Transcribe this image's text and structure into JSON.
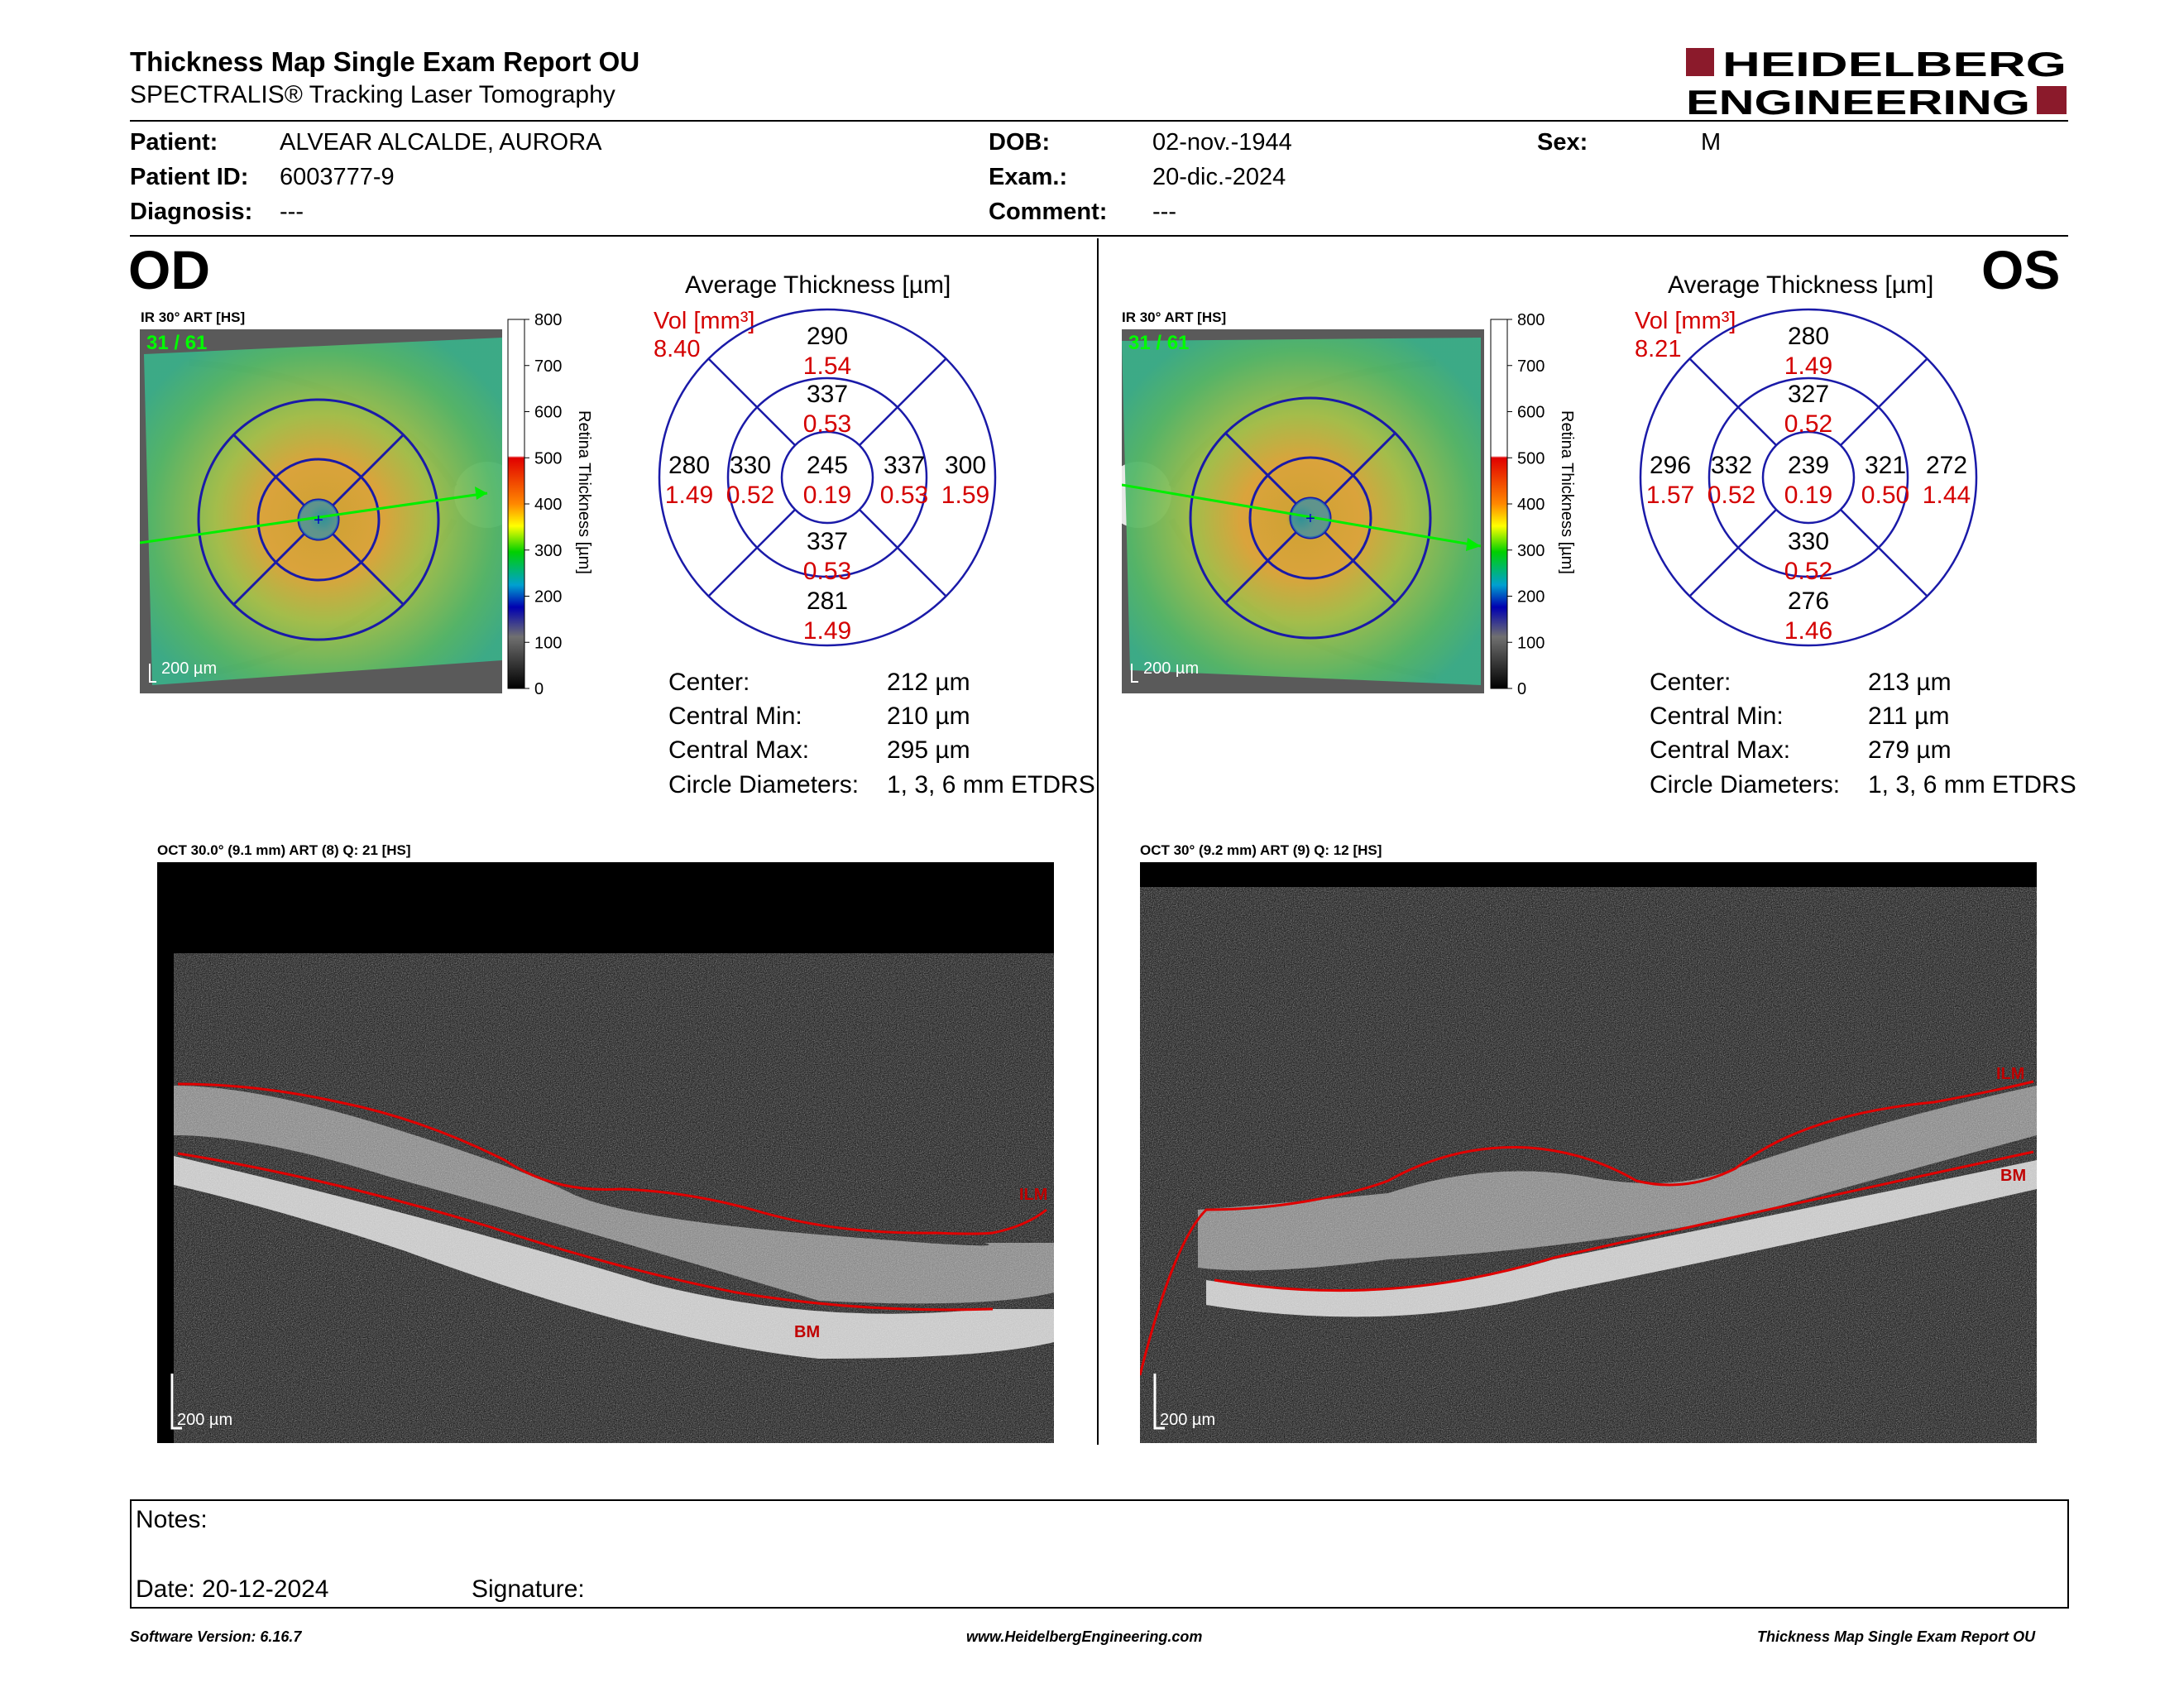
{
  "header": {
    "title": "Thickness Map Single Exam Report OU",
    "subtitle": "SPECTRALIS® Tracking Laser Tomography",
    "logo_line1": "HEIDELBERG",
    "logo_line2": "ENGINEERING"
  },
  "patient": {
    "patient_label": "Patient:",
    "patient_value": "ALVEAR ALCALDE, AURORA",
    "id_label": "Patient ID:",
    "id_value": "6003777-9",
    "diagnosis_label": "Diagnosis:",
    "diagnosis_value": "---",
    "dob_label": "DOB:",
    "dob_value": "02-nov.-1944",
    "exam_label": "Exam.:",
    "exam_value": "20-dic.-2024",
    "comment_label": "Comment:",
    "comment_value": "---",
    "sex_label": "Sex:",
    "sex_value": "M"
  },
  "colorbar": {
    "ticks": [
      "800",
      "700",
      "600",
      "500",
      "400",
      "300",
      "200",
      "100",
      "0"
    ],
    "label": "Retina Thickness [µm]"
  },
  "od": {
    "eye": "OD",
    "ir_label": "IR 30° ART [HS]",
    "frame": "31 / 61",
    "scale": "200 µm",
    "avg_title": "Average Thickness [µm]",
    "vol_label": "Vol [mm³]",
    "vol_total": "8.40",
    "center": {
      "t": "245",
      "v": "0.19"
    },
    "inner_sup": {
      "t": "337",
      "v": "0.53"
    },
    "inner_inf": {
      "t": "337",
      "v": "0.53"
    },
    "inner_left": {
      "t": "330",
      "v": "0.52"
    },
    "inner_right": {
      "t": "337",
      "v": "0.53"
    },
    "outer_sup": {
      "t": "290",
      "v": "1.54"
    },
    "outer_inf": {
      "t": "281",
      "v": "1.49"
    },
    "outer_left": {
      "t": "280",
      "v": "1.49"
    },
    "outer_right": {
      "t": "300",
      "v": "1.59"
    },
    "stats": {
      "center_label": "Center:",
      "center_value": "212 µm",
      "min_label": "Central Min:",
      "min_value": "210 µm",
      "max_label": "Central Max:",
      "max_value": "295 µm",
      "diam_label": "Circle Diameters:",
      "diam_value": "1, 3, 6 mm ETDRS"
    },
    "oct_label": "OCT 30.0° (9.1 mm) ART (8) Q: 21 [HS]",
    "oct_scale": "200 µm",
    "ilm": "ILM",
    "bm": "BM"
  },
  "os": {
    "eye": "OS",
    "ir_label": "IR 30° ART [HS]",
    "frame": "31 / 61",
    "scale": "200 µm",
    "avg_title": "Average Thickness [µm]",
    "vol_label": "Vol [mm³]",
    "vol_total": "8.21",
    "center": {
      "t": "239",
      "v": "0.19"
    },
    "inner_sup": {
      "t": "327",
      "v": "0.52"
    },
    "inner_inf": {
      "t": "330",
      "v": "0.52"
    },
    "inner_left": {
      "t": "332",
      "v": "0.52"
    },
    "inner_right": {
      "t": "321",
      "v": "0.50"
    },
    "outer_sup": {
      "t": "280",
      "v": "1.49"
    },
    "outer_inf": {
      "t": "276",
      "v": "1.46"
    },
    "outer_left": {
      "t": "296",
      "v": "1.57"
    },
    "outer_right": {
      "t": "272",
      "v": "1.44"
    },
    "stats": {
      "center_label": "Center:",
      "center_value": "213 µm",
      "min_label": "Central Min:",
      "min_value": "211 µm",
      "max_label": "Central Max:",
      "max_value": "279 µm",
      "diam_label": "Circle Diameters:",
      "diam_value": "1, 3, 6 mm ETDRS"
    },
    "oct_label": "OCT 30° (9.2 mm) ART (9) Q: 12 [HS]",
    "oct_scale": "200 µm",
    "ilm": "ILM",
    "bm": "BM"
  },
  "notes": {
    "notes_label": "Notes:",
    "date_label": "Date: 20-12-2024",
    "signature_label": "Signature:"
  },
  "footer": {
    "software": "Software Version: 6.16.7",
    "website": "www.HeidelbergEngineering.com",
    "report": "Thickness Map Single Exam Report OU"
  },
  "colors": {
    "red_text": "#d40000",
    "grid_blue": "#1a1aa8",
    "logo_red": "#8b1a2b"
  }
}
